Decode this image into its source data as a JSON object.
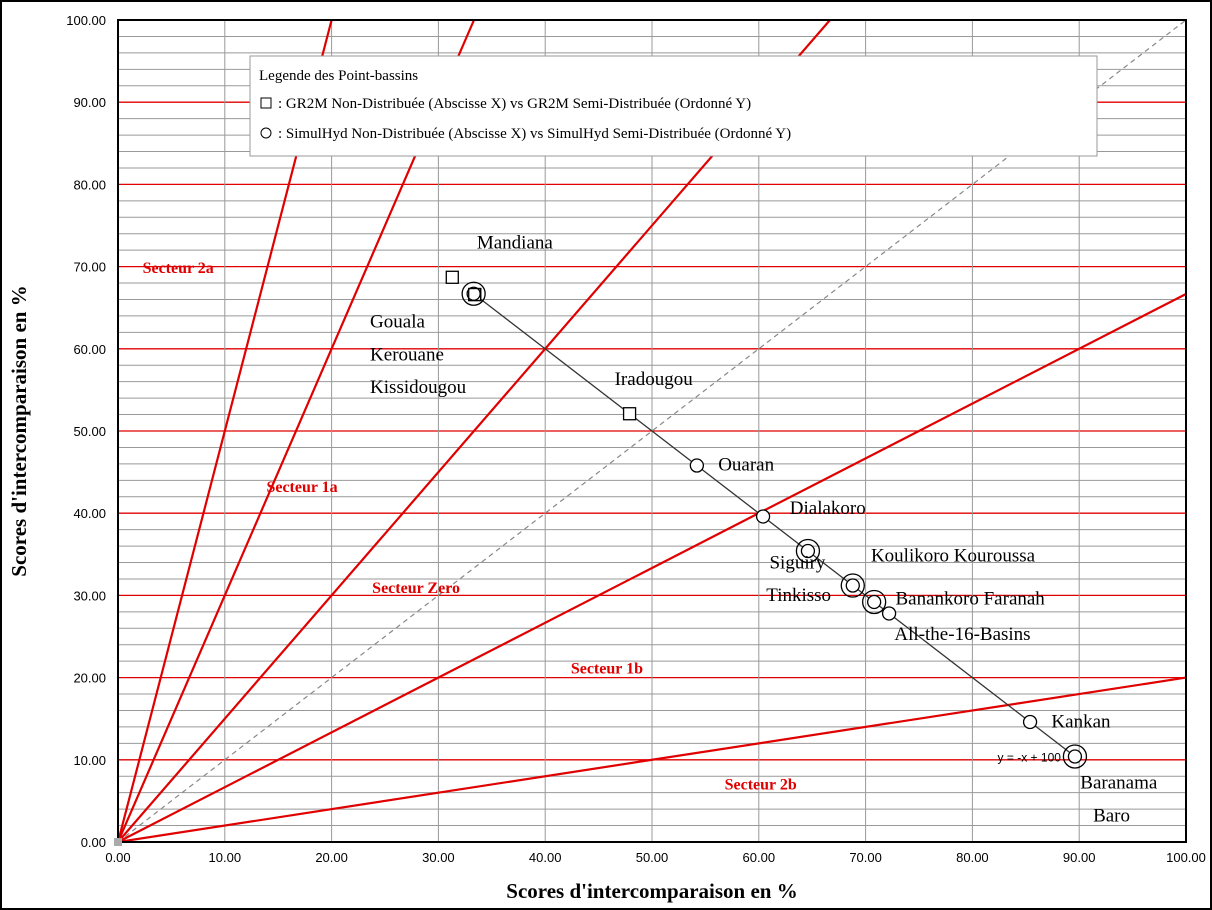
{
  "chart_data": {
    "type": "scatter",
    "xlabel": "Scores d'intercomparaison en %",
    "ylabel": "Scores d'intercomparaison en %",
    "xlim": [
      0,
      100
    ],
    "ylim": [
      0,
      100
    ],
    "x_ticks": [
      "0.00",
      "10.00",
      "20.00",
      "30.00",
      "40.00",
      "50.00",
      "60.00",
      "70.00",
      "80.00",
      "90.00",
      "100.00"
    ],
    "y_ticks": [
      "0.00",
      "10.00",
      "20.00",
      "30.00",
      "40.00",
      "50.00",
      "60.00",
      "70.00",
      "80.00",
      "90.00",
      "100.00"
    ],
    "grid": true,
    "legend": {
      "title": "Legende des Point-bassins",
      "position": "top-center",
      "entries": [
        {
          "marker": "square",
          "text": ": GR2M Non-Distribuée (Abscisse X) vs GR2M Semi-Distribuée (Ordonné Y)"
        },
        {
          "marker": "circle",
          "text": ": SimulHyd Non-Distribuée (Abscisse X) vs SimulHyd Semi-Distribuée (Ordonné Y)"
        }
      ]
    },
    "series": [
      {
        "name": "GR2M Non-Distribuée (Abscisse X) vs GR2M Semi-Distribuée (Ordonné Y)",
        "marker": "square",
        "points": [
          {
            "x": 31.3,
            "y": 68.7
          },
          {
            "x": 33.4,
            "y": 66.6
          },
          {
            "x": 47.9,
            "y": 52.1
          }
        ]
      },
      {
        "name": "SimulHyd Non-Distribuée (Abscisse X) vs SimulHyd Semi-Distribuée (Ordonné Y)",
        "marker": "circle",
        "points": [
          {
            "x": 33.3,
            "y": 66.7,
            "double": true
          },
          {
            "x": 54.2,
            "y": 45.8
          },
          {
            "x": 60.4,
            "y": 39.6
          },
          {
            "x": 64.6,
            "y": 35.4,
            "double": true
          },
          {
            "x": 68.8,
            "y": 31.2,
            "double": true
          },
          {
            "x": 70.8,
            "y": 29.2,
            "double": true
          },
          {
            "x": 72.2,
            "y": 27.8
          },
          {
            "x": 85.4,
            "y": 14.6
          },
          {
            "x": 89.6,
            "y": 10.4,
            "double": true
          }
        ]
      }
    ],
    "point_labels": [
      {
        "text": "Mandiana",
        "x": 33.6,
        "y": 72.2
      },
      {
        "text": "Gouala",
        "x": 23.6,
        "y": 62.6
      },
      {
        "text": "Kerouane",
        "x": 23.6,
        "y": 58.6
      },
      {
        "text": "Kissidougou",
        "x": 23.6,
        "y": 54.6
      },
      {
        "text": "Iradougou",
        "x": 46.5,
        "y": 55.6
      },
      {
        "text": "Ouaran",
        "x": 56.2,
        "y": 45.2
      },
      {
        "text": "Dialakoro",
        "x": 62.9,
        "y": 39.9
      },
      {
        "text": "Siguiry",
        "x": 61.0,
        "y": 33.3
      },
      {
        "text": "Tinkisso",
        "x": 60.7,
        "y": 29.3
      },
      {
        "text": "Koulikoro Kouroussa",
        "x": 70.5,
        "y": 34.1
      },
      {
        "text": "Banankoro Faranah",
        "x": 72.8,
        "y": 28.9
      },
      {
        "text": "All-the-16-Basins",
        "x": 72.7,
        "y": 24.6
      },
      {
        "text": "Kankan",
        "x": 87.4,
        "y": 13.9
      },
      {
        "text": "Baranama",
        "x": 90.1,
        "y": 6.5
      },
      {
        "text": "Baro",
        "x": 91.3,
        "y": 2.5
      }
    ],
    "sectors": [
      {
        "text": "Secteur 2a",
        "x": 2.3,
        "y": 69.2
      },
      {
        "text": "Secteur 1a",
        "x": 13.9,
        "y": 42.6
      },
      {
        "text": "Secteur Zero",
        "x": 23.8,
        "y": 30.3
      },
      {
        "text": "Secteur 1b",
        "x": 42.4,
        "y": 20.5
      },
      {
        "text": "Secteur 2b",
        "x": 56.8,
        "y": 6.4
      }
    ],
    "reference_lines": [
      {
        "kind": "ray",
        "slope": 5,
        "color": "#e00000"
      },
      {
        "kind": "ray",
        "slope": 3,
        "color": "#e00000"
      },
      {
        "kind": "ray",
        "slope": 1.5,
        "color": "#e00000"
      },
      {
        "kind": "ray",
        "slope": 0.6667,
        "color": "#e00000"
      },
      {
        "kind": "ray",
        "slope": 0.2,
        "color": "#e00000"
      },
      {
        "kind": "diagonal-dashed",
        "slope": 1,
        "color": "#888888"
      }
    ],
    "trendline": {
      "equation": "y = -x + 100",
      "from_x": 33.3,
      "to_x": 89.6
    },
    "colors": {
      "red": "#e00000",
      "grid": "#999999",
      "diagonal": "#888888"
    }
  }
}
